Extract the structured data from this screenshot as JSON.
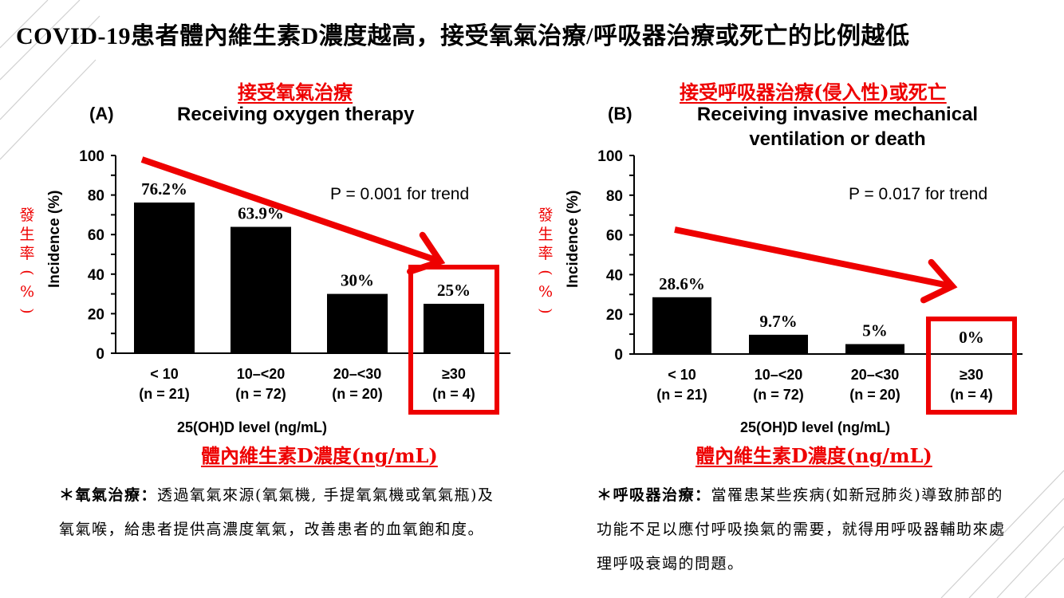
{
  "slide": {
    "title": "COVID-19患者體內維生素D濃度越高，接受氧氣治療/呼吸器治療或死亡的比例越低"
  },
  "notes": [
    {
      "term": "＊氧氣治療：",
      "text": "透過氧氣來源(氧氣機, 手提氧氣機或氧氣瓶)及氧氣喉，給患者提供高濃度氧氣，改善患者的血氧飽和度。"
    },
    {
      "term": "＊呼吸器治療：",
      "text": "當罹患某些疾病(如新冠肺炎)導致肺部的功能不足以應付呼吸換氣的需要，就得用呼吸器輔助來處理呼吸衰竭的問題。"
    }
  ],
  "colors": {
    "accent": "#ee0000",
    "bar": "#000000",
    "axis": "#000000"
  },
  "chart_data": [
    {
      "type": "bar",
      "panel": "(A)",
      "title": "Receiving oxygen therapy",
      "title_zh": "接受氧氣治療",
      "annotation": "P = 0.001 for trend",
      "ylabel": "Incidence (%)",
      "ylabel_zh": [
        "發",
        "生",
        "率",
        "(",
        "%",
        ")"
      ],
      "xlabel": "25(OH)D level (ng/mL)",
      "xlabel_zh": "體內維生素D濃度(ng/mL)",
      "ylim": [
        0,
        100
      ],
      "yticks": [
        0,
        20,
        40,
        60,
        80,
        100
      ],
      "categories": [
        "< 10",
        "10–<20",
        "20–<30",
        "≥30"
      ],
      "n_labels": [
        "(n = 21)",
        "(n = 72)",
        "(n = 20)",
        "(n = 4)"
      ],
      "values": [
        76.2,
        63.9,
        30,
        25
      ],
      "value_labels": [
        "76.2%",
        "63.9%",
        "30%",
        "25%"
      ],
      "highlighted_category": "≥30",
      "trend_arrow": "decreasing"
    },
    {
      "type": "bar",
      "panel": "(B)",
      "title": "Receiving invasive mechanical ventilation or death",
      "title_lines": [
        "Receiving invasive mechanical",
        "ventilation or death"
      ],
      "title_zh": "接受呼吸器治療(侵入性)或死亡",
      "annotation": "P = 0.017 for trend",
      "ylabel": "Incidence (%)",
      "ylabel_zh": [
        "發",
        "生",
        "率",
        "(",
        "%",
        ")"
      ],
      "xlabel": "25(OH)D level (ng/mL)",
      "xlabel_zh": "體內維生素D濃度(ng/mL)",
      "ylim": [
        0,
        100
      ],
      "yticks": [
        0,
        20,
        40,
        60,
        80,
        100
      ],
      "categories": [
        "< 10",
        "10–<20",
        "20–<30",
        "≥30"
      ],
      "n_labels": [
        "(n = 21)",
        "(n = 72)",
        "(n = 20)",
        "(n = 4)"
      ],
      "values": [
        28.6,
        9.7,
        5,
        0
      ],
      "value_labels": [
        "28.6%",
        "9.7%",
        "5%",
        "0%"
      ],
      "highlighted_category": "≥30",
      "trend_arrow": "decreasing"
    }
  ]
}
